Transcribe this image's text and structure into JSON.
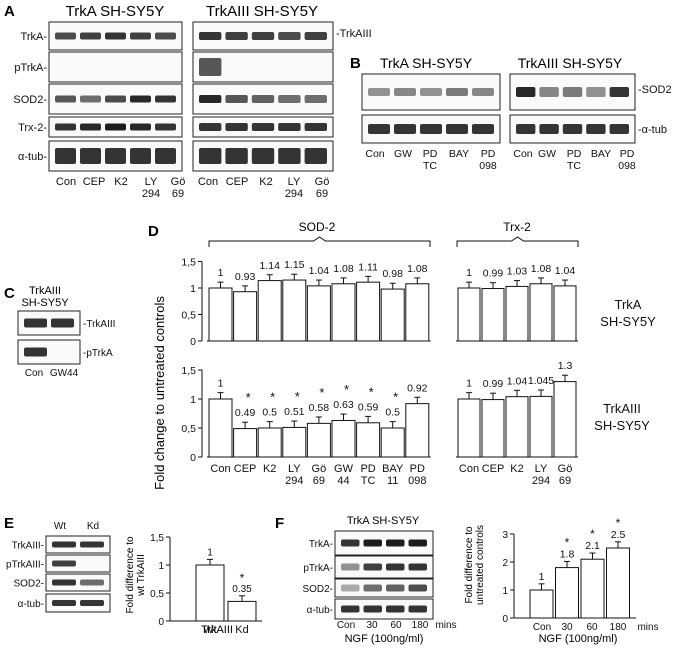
{
  "panels": {
    "A": {
      "letter": "A",
      "left_title": "TrkA SH-SY5Y",
      "right_title": "TrkAIII SH-SY5Y",
      "row_labels": [
        "TrkA-",
        "pTrkA-",
        "SOD2-",
        "Trx-2-",
        "α-tub-"
      ],
      "right_marker": "-TrkAIII",
      "left_lanes": [
        "Con",
        "CEP",
        "K2",
        "LY\n294",
        "Gö\n69"
      ],
      "right_lanes": [
        "Con",
        "CEP",
        "K2",
        "LY\n294",
        "Gö\n69"
      ]
    },
    "B": {
      "letter": "B",
      "left_title": "TrkA SH-SY5Y",
      "right_title": "TrkAIII SH-SY5Y",
      "markers": [
        "-SOD2",
        "-α-tub"
      ],
      "left_lanes": [
        "Con",
        "GW",
        "PD\nTC",
        "BAY",
        "PD\n098"
      ],
      "right_lanes": [
        "Con",
        "GW",
        "PD\nTC",
        "BAY",
        "PD\n098"
      ]
    },
    "C": {
      "letter": "C",
      "title_line1": "TrkAIII",
      "title_line2": "SH-SY5Y",
      "markers": [
        "-TrkAIII",
        "-pTrkA"
      ],
      "lanes": [
        "Con",
        "GW44"
      ]
    },
    "D": {
      "letter": "D",
      "ylabel": "Fold change to untreated controls",
      "bracket_sod2": "SOD-2",
      "bracket_trx2": "Trx-2",
      "row_label_top": "TrkA\nSH-SY5Y",
      "row_label_bottom": "TrkAIII\nSH-SY5Y",
      "yticks": [
        "0",
        "0,5",
        "1",
        "1,5"
      ]
    },
    "E": {
      "letter": "E",
      "lanes": [
        "Wt",
        "Kd"
      ],
      "row_labels": [
        "TrkAIII-",
        "pTrkAIII-",
        "SOD2-",
        "α-tub-"
      ],
      "ylabel_line1": "Fold difference to",
      "ylabel_line2": "wt TrkAIII",
      "xlabel": "TrkAIII",
      "yticks": [
        "0",
        "0,5",
        "1",
        "1,5"
      ]
    },
    "F": {
      "letter": "F",
      "blot_title": "TrkA SH-SY5Y",
      "row_labels": [
        "TrkA-",
        "pTrkA-",
        "SOD2-",
        "α-tub-"
      ],
      "lanes": [
        "Con",
        "30",
        "60",
        "180",
        "mins"
      ],
      "xlabel": "NGF (100ng/ml)",
      "ylabel_line1": "Fold difference to",
      "ylabel_line2": "untreated controls",
      "yticks": [
        "0",
        "1",
        "2",
        "3"
      ]
    }
  },
  "chart_data": [
    {
      "panel": "D",
      "type": "bar",
      "title": "",
      "ylabel": "Fold change to untreated controls",
      "ylim": [
        0,
        1.5
      ],
      "groups": [
        {
          "name": "SOD-2",
          "row": "TrkA SH-SY5Y",
          "categories": [
            "Con",
            "CEP",
            "K2",
            "LY 294",
            "Gö 69",
            "GW 44",
            "PD TC",
            "BAY 11",
            "PD 098"
          ],
          "values": [
            1,
            0.93,
            1.14,
            1.15,
            1.04,
            1.08,
            1.11,
            0.98,
            1.08
          ],
          "labels": [
            "1",
            "0.93",
            "1.14",
            "1.15",
            "1.04",
            "1.08",
            "1.11",
            "0.98",
            "1.08"
          ],
          "significant": [
            false,
            false,
            false,
            false,
            false,
            false,
            false,
            false,
            false
          ]
        },
        {
          "name": "Trx-2",
          "row": "TrkA SH-SY5Y",
          "categories": [
            "Con",
            "CEP",
            "K2",
            "LY 294",
            "Gö 69"
          ],
          "values": [
            1,
            0.99,
            1.03,
            1.08,
            1.04
          ],
          "labels": [
            "1",
            "0.99",
            "1.03",
            "1.08",
            "1.04"
          ],
          "significant": [
            false,
            false,
            false,
            false,
            false
          ]
        },
        {
          "name": "SOD-2",
          "row": "TrkAIII SH-SY5Y",
          "categories": [
            "Con",
            "CEP",
            "K2",
            "LY 294",
            "Gö 69",
            "GW 44",
            "PD TC",
            "BAY 11",
            "PD 098"
          ],
          "values": [
            1,
            0.49,
            0.5,
            0.51,
            0.58,
            0.63,
            0.59,
            0.5,
            0.92
          ],
          "labels": [
            "1",
            "0.49",
            "0.5",
            "0.51",
            "0.58",
            "0.63",
            "0.59",
            "0.5",
            "0.92"
          ],
          "significant": [
            false,
            true,
            true,
            true,
            true,
            true,
            true,
            true,
            false
          ]
        },
        {
          "name": "Trx-2",
          "row": "TrkAIII SH-SY5Y",
          "categories": [
            "Con",
            "CEP",
            "K2",
            "LY 294",
            "Gö 69"
          ],
          "values": [
            1,
            0.99,
            1.04,
            1.045,
            1.3
          ],
          "labels": [
            "1",
            "0.99",
            "1.04",
            "1.045",
            "1.3"
          ],
          "significant": [
            false,
            false,
            false,
            false,
            false
          ]
        }
      ]
    },
    {
      "panel": "E",
      "type": "bar",
      "title": "",
      "xlabel": "TrkAIII",
      "ylabel": "Fold difference to wt TrkAIII",
      "ylim": [
        0,
        1.5
      ],
      "categories": [
        "Wt",
        "Kd"
      ],
      "values": [
        1,
        0.35
      ],
      "labels": [
        "1",
        "0.35"
      ],
      "significant": [
        false,
        true
      ]
    },
    {
      "panel": "F",
      "type": "bar",
      "title": "",
      "xlabel": "NGF (100ng/ml)",
      "ylabel": "Fold difference to untreated controls",
      "ylim": [
        0,
        3
      ],
      "categories": [
        "Con",
        "30",
        "60",
        "180"
      ],
      "values": [
        1,
        1.8,
        2.1,
        2.5
      ],
      "labels": [
        "1",
        "1.8",
        "2.1",
        "2.5"
      ],
      "significant": [
        false,
        true,
        true,
        true
      ]
    }
  ]
}
